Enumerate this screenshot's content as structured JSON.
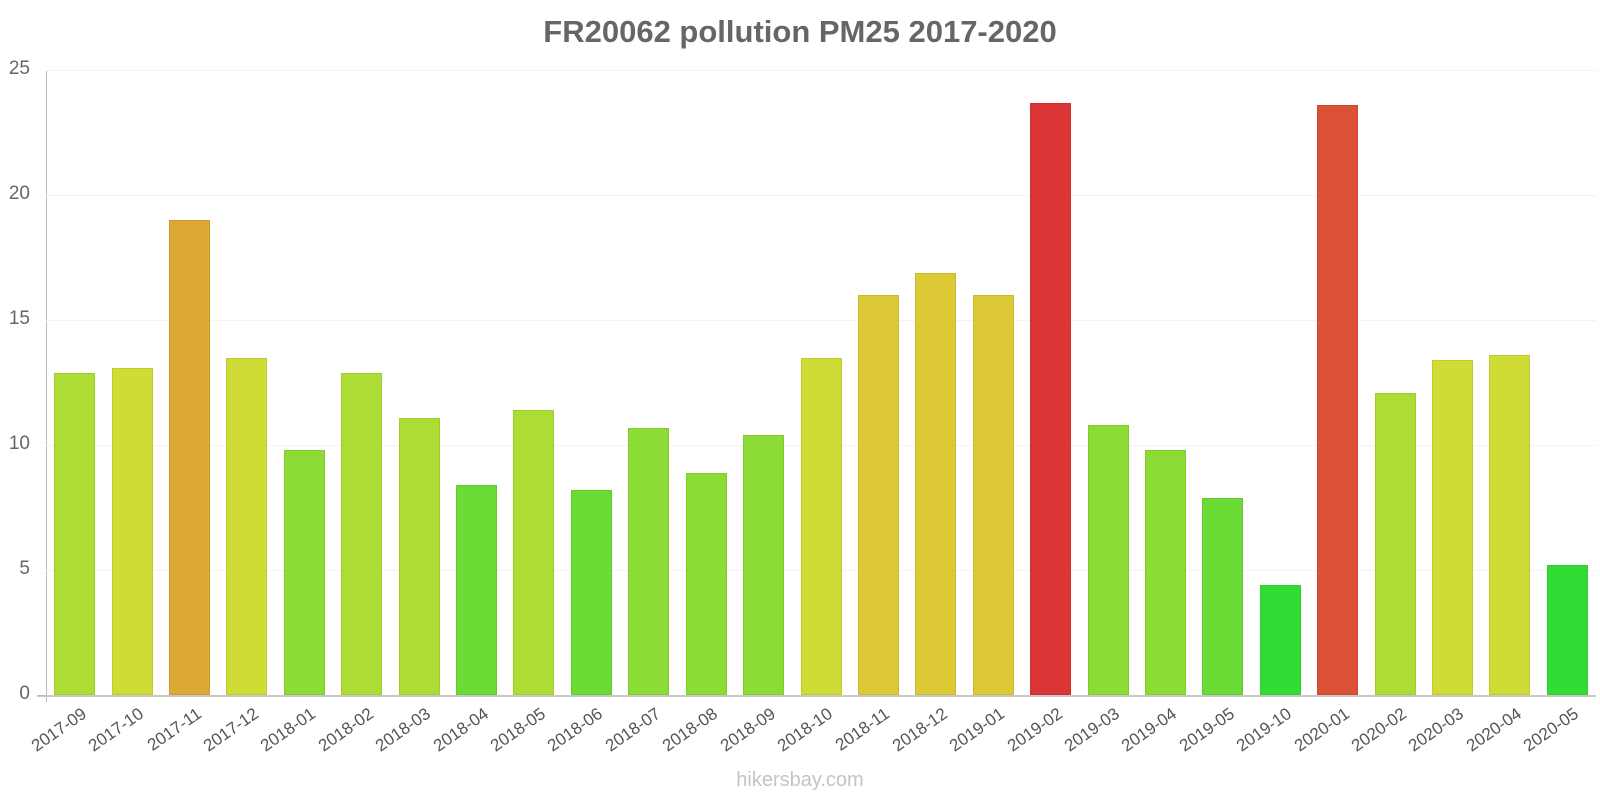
{
  "title": "FR20062 pollution PM25 2017-2020",
  "footer": "hikersbay.com",
  "y_ticks": [
    "0",
    "5",
    "10",
    "15",
    "20",
    "25"
  ],
  "chart_data": {
    "type": "bar",
    "title": "FR20062 pollution PM25 2017-2020",
    "xlabel": "",
    "ylabel": "",
    "ylim": [
      0,
      25
    ],
    "yticks": [
      0,
      5,
      10,
      15,
      20,
      25
    ],
    "grid": true,
    "legend": "none",
    "categories": [
      "2017-09",
      "2017-10",
      "2017-11",
      "2017-12",
      "2018-01",
      "2018-02",
      "2018-03",
      "2018-04",
      "2018-05",
      "2018-06",
      "2018-07",
      "2018-08",
      "2018-09",
      "2018-10",
      "2018-11",
      "2018-12",
      "2019-01",
      "2019-02",
      "2019-03",
      "2019-04",
      "2019-05",
      "2019-10",
      "2020-01",
      "2020-02",
      "2020-03",
      "2020-04",
      "2020-05"
    ],
    "values": [
      12.9,
      13.1,
      19.0,
      13.5,
      9.8,
      12.9,
      11.1,
      8.4,
      11.4,
      8.2,
      10.7,
      8.9,
      10.4,
      13.5,
      16.0,
      16.9,
      16.0,
      23.7,
      10.8,
      9.8,
      7.9,
      4.4,
      23.6,
      12.1,
      13.4,
      13.6,
      5.2
    ],
    "colors": [
      "#addc35",
      "#cfdc35",
      "#dca935",
      "#cfdc35",
      "#8cdc35",
      "#addc35",
      "#addc35",
      "#6bdc35",
      "#addc35",
      "#6bdc35",
      "#8cdc35",
      "#8cdc35",
      "#8cdc35",
      "#cfdc35",
      "#dcc935",
      "#dcc935",
      "#dcc935",
      "#dc3535",
      "#8cdc35",
      "#8cdc35",
      "#6bdc35",
      "#33dc35",
      "#dc5035",
      "#addc35",
      "#cfdc35",
      "#cfdc35",
      "#33dc35"
    ]
  }
}
